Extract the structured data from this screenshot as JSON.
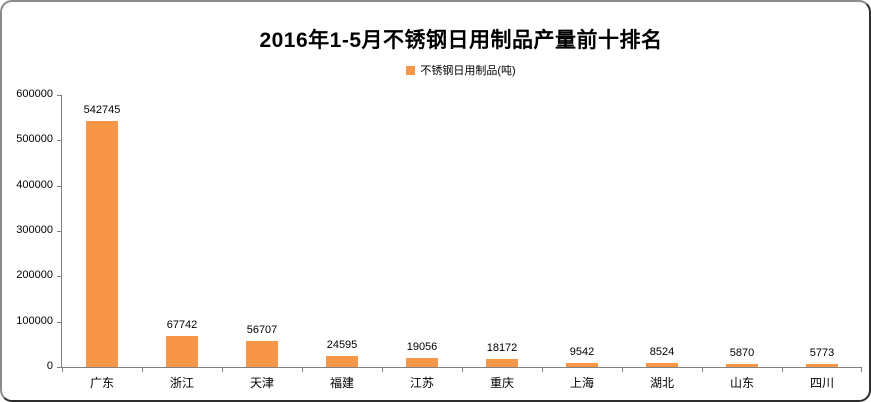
{
  "chart_data": {
    "type": "bar",
    "title": "2016年1-5月不锈钢日用制品产量前十排名",
    "legend": "不锈钢日用制品(吨)",
    "categories": [
      "广东",
      "浙江",
      "天津",
      "福建",
      "江苏",
      "重庆",
      "上海",
      "湖北",
      "山东",
      "四川"
    ],
    "values": [
      542745,
      67742,
      56707,
      24595,
      19056,
      18172,
      9542,
      8524,
      5870,
      5773
    ],
    "xlabel": "",
    "ylabel": "",
    "ylim": [
      0,
      600000
    ],
    "ytick_step": 100000,
    "grid": false,
    "legend_position": "top-center",
    "bar_color": "#F79646",
    "axis_color": "#808080",
    "text_color": "#000000"
  }
}
